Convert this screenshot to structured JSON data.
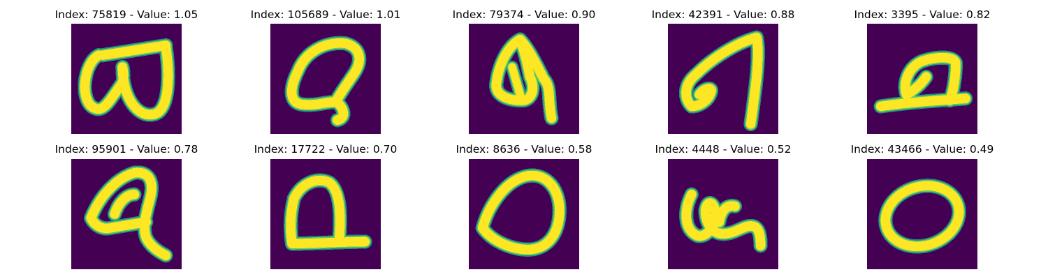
{
  "colors": {
    "background": "#440154",
    "edge": "#21908c",
    "mid": "#5ec962",
    "stroke": "#fde725"
  },
  "samples": [
    {
      "index": 75819,
      "value": "1.05",
      "title": "Index: 75819 - Value: 1.05"
    },
    {
      "index": 105689,
      "value": "1.01",
      "title": "Index: 105689 - Value: 1.01"
    },
    {
      "index": 79374,
      "value": "0.90",
      "title": "Index: 79374 - Value: 0.90"
    },
    {
      "index": 42391,
      "value": "0.88",
      "title": "Index: 42391 - Value: 0.88"
    },
    {
      "index": 3395,
      "value": "0.82",
      "title": "Index: 3395 - Value: 0.82"
    },
    {
      "index": 95901,
      "value": "0.78",
      "title": "Index: 95901 - Value: 0.78"
    },
    {
      "index": 17722,
      "value": "0.70",
      "title": "Index: 17722 - Value: 0.70"
    },
    {
      "index": 8636,
      "value": "0.58",
      "title": "Index: 8636 - Value: 0.58"
    },
    {
      "index": 4448,
      "value": "0.52",
      "title": "Index: 4448 - Value: 0.52"
    },
    {
      "index": 43466,
      "value": "0.49",
      "title": "Index: 43466 - Value: 0.49"
    }
  ]
}
